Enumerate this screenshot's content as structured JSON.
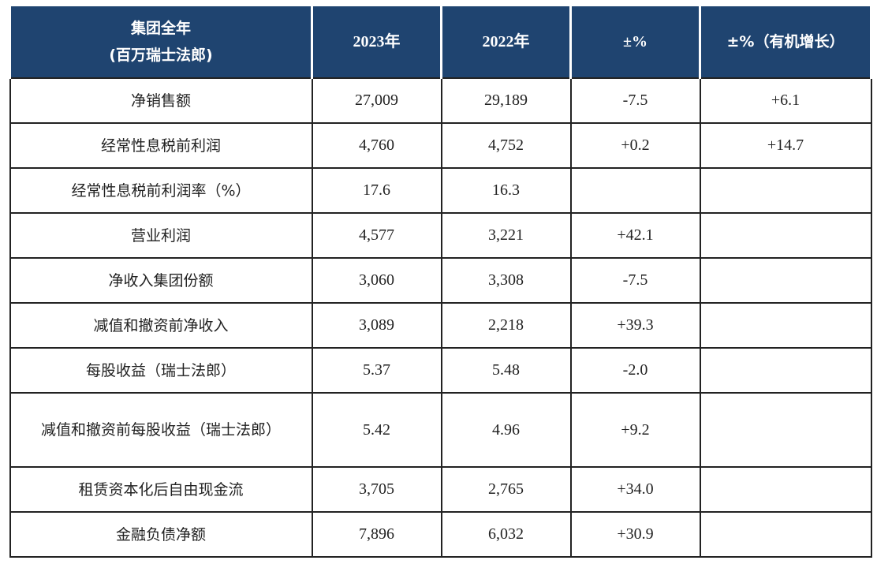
{
  "colors": {
    "header_bg": "#1f4470",
    "header_text": "#ffffff",
    "border": "#222222"
  },
  "header": {
    "col0_line1": "集团全年",
    "col0_line2": "(百万瑞士法郎)",
    "col1": "2023年",
    "col2": "2022年",
    "col3": "±%",
    "col4": "±%（有机增长）"
  },
  "rows": [
    {
      "label": "净销售额",
      "y2023": "27,009",
      "y2022": "29,189",
      "change": "-7.5",
      "organic": "+6.1"
    },
    {
      "label": "经常性息税前利润",
      "y2023": "4,760",
      "y2022": "4,752",
      "change": "+0.2",
      "organic": "+14.7"
    },
    {
      "label": "经常性息税前利润率（%）",
      "y2023": "17.6",
      "y2022": "16.3",
      "change": "",
      "organic": ""
    },
    {
      "label": "营业利润",
      "y2023": "4,577",
      "y2022": "3,221",
      "change": "+42.1",
      "organic": ""
    },
    {
      "label": "净收入集团份额",
      "y2023": "3,060",
      "y2022": "3,308",
      "change": "-7.5",
      "organic": ""
    },
    {
      "label": "减值和撤资前净收入",
      "y2023": "3,089",
      "y2022": "2,218",
      "change": "+39.3",
      "organic": ""
    },
    {
      "label": "每股收益（瑞士法郎）",
      "y2023": "5.37",
      "y2022": "5.48",
      "change": "-2.0",
      "organic": ""
    },
    {
      "label": "减值和撤资前每股收益（瑞士法郎）",
      "y2023": "5.42",
      "y2022": "4.96",
      "change": "+9.2",
      "organic": ""
    },
    {
      "label": "租赁资本化后自由现金流",
      "y2023": "3,705",
      "y2022": "2,765",
      "change": "+34.0",
      "organic": ""
    },
    {
      "label": "金融负债净额",
      "y2023": "7,896",
      "y2022": "6,032",
      "change": "+30.9",
      "organic": ""
    }
  ]
}
